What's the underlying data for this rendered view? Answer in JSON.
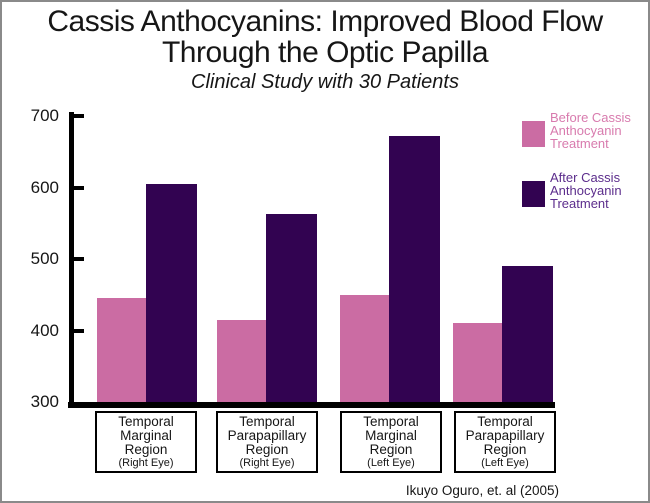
{
  "header": {
    "title_line1": "Cassis Anthocyanins: Improved Blood Flow",
    "title_line2": "Through the Optic Papilla",
    "subtitle": "Clinical Study with 30 Patients"
  },
  "attribution": "Ikuyo Oguro, et. al (2005)",
  "colors": {
    "before_bar": "#cb6ca3",
    "after_bar": "#320351",
    "before_legend_text": "#d87bae",
    "after_legend_text": "#5c2d8c",
    "axis": "#000000",
    "frame_border": "#8a8a8a"
  },
  "chart_data": {
    "type": "bar",
    "title": "Cassis Anthocyanins: Improved Blood Flow Through the Optic Papilla",
    "subtitle": "Clinical Study with 30 Patients",
    "categories": [
      {
        "label": "Temporal Marginal Region (Right Eye)",
        "lines": [
          "Temporal",
          "Marginal",
          "Region"
        ],
        "eye": "(Right Eye)"
      },
      {
        "label": "Temporal Parapapillary Region (Right Eye)",
        "lines": [
          "Temporal",
          "Parapapillary",
          "Region"
        ],
        "eye": "(Right Eye)"
      },
      {
        "label": "Temporal Marginal Region (Left Eye)",
        "lines": [
          "Temporal",
          "Marginal",
          "Region"
        ],
        "eye": "(Left Eye)"
      },
      {
        "label": "Temporal Parapapillary Region (Left Eye)",
        "lines": [
          "Temporal",
          "Parapapillary",
          "Region"
        ],
        "eye": "(Left Eye)"
      }
    ],
    "series": [
      {
        "name": "Before Cassis Anthocyanin Treatment",
        "name_lines": [
          "Before Cassis",
          "Anthocyanin",
          "Treatment"
        ],
        "color": "#cb6ca3",
        "text_color": "#d87bae",
        "values": [
          445,
          415,
          450,
          411
        ]
      },
      {
        "name": "After Cassis Anthocyanin Treatment",
        "name_lines": [
          "After Cassis",
          "Anthocyanin",
          "Treatment"
        ],
        "color": "#320351",
        "text_color": "#5c2d8c",
        "values": [
          605,
          563,
          672,
          490
        ]
      }
    ],
    "xlabel": "",
    "ylabel": "",
    "ylim": [
      300,
      700
    ],
    "yticks": [
      700,
      600,
      500,
      400,
      300
    ],
    "grid": false,
    "legend_position": "right",
    "annotation": "Ikuyo Oguro, et. al (2005)"
  }
}
